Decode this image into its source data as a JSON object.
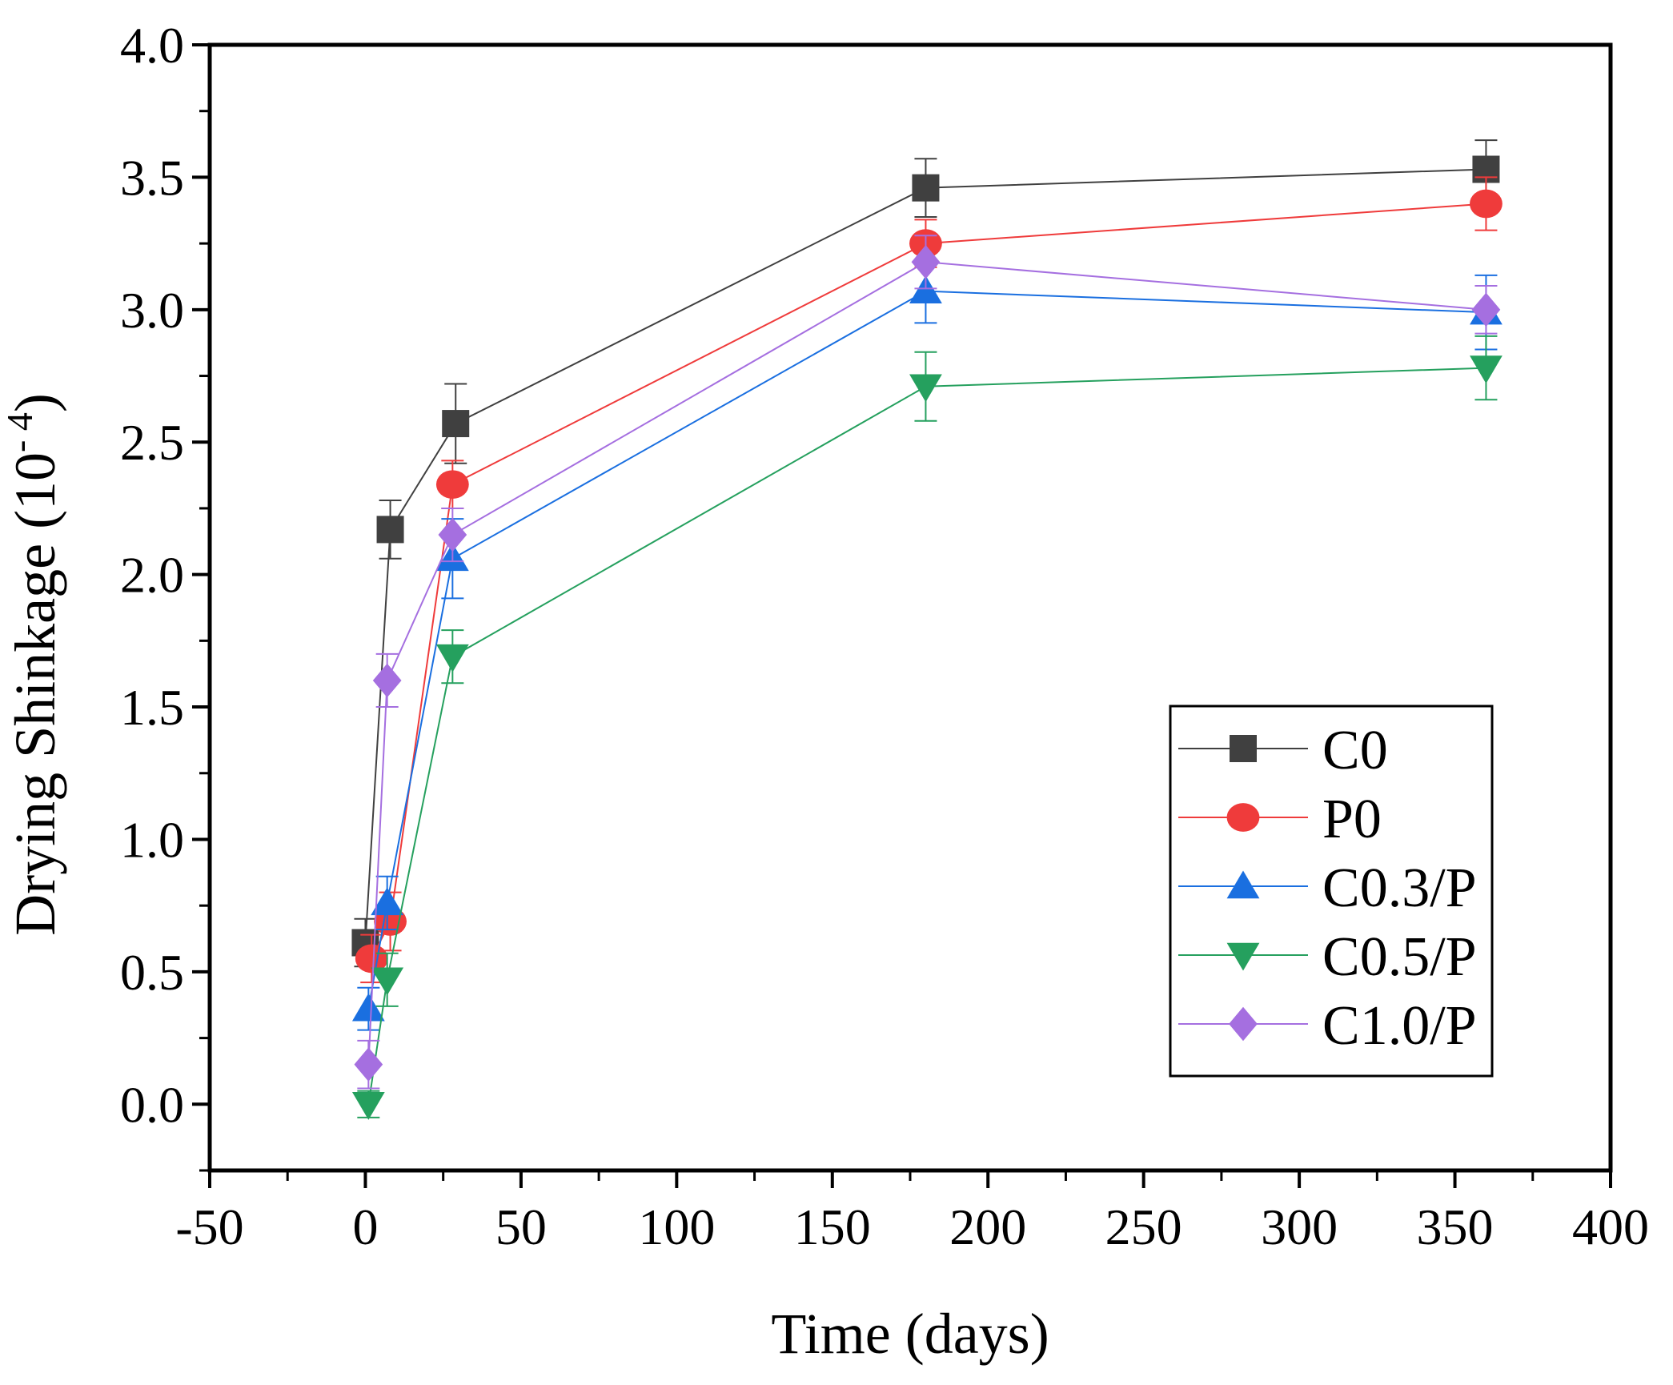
{
  "chart_data": {
    "type": "line",
    "xlabel": "Time (days)",
    "ylabel_main": "Drying Shinkage (10",
    "ylabel_exp": "- 4",
    "ylabel_close": ")",
    "xlim": [
      -50,
      400
    ],
    "ylim": [
      -0.25,
      4.0
    ],
    "xticks": [
      -50,
      0,
      50,
      100,
      150,
      200,
      250,
      300,
      350,
      400
    ],
    "xtick_labels": [
      "-50",
      "0",
      "50",
      "100",
      "150",
      "200",
      "250",
      "300",
      "350",
      "400"
    ],
    "yticks": [
      0.0,
      0.5,
      1.0,
      1.5,
      2.0,
      2.5,
      3.0,
      3.5,
      4.0
    ],
    "ytick_labels": [
      "0.0",
      "0.5",
      "1.0",
      "1.5",
      "2.0",
      "2.5",
      "3.0",
      "3.5",
      "4.0"
    ],
    "legend_position": "bottom-right",
    "series": [
      {
        "name": "C0",
        "color": "#404040",
        "marker": "square",
        "x": [
          0,
          8,
          29,
          180,
          360
        ],
        "y": [
          0.61,
          2.17,
          2.57,
          3.46,
          3.53
        ],
        "err": [
          0.09,
          0.11,
          0.15,
          0.11,
          0.11
        ]
      },
      {
        "name": "P0",
        "color": "#ef3b3b",
        "marker": "circle",
        "x": [
          2,
          8,
          28,
          180,
          360
        ],
        "y": [
          0.55,
          0.69,
          2.34,
          3.25,
          3.4
        ],
        "err": [
          0.09,
          0.11,
          0.09,
          0.09,
          0.1
        ]
      },
      {
        "name": "C0.3/P",
        "color": "#1a6fe0",
        "marker": "triangle-up",
        "x": [
          1,
          7,
          28,
          180,
          360
        ],
        "y": [
          0.36,
          0.76,
          2.06,
          3.07,
          2.99
        ],
        "err": [
          0.08,
          0.1,
          0.15,
          0.12,
          0.14
        ]
      },
      {
        "name": "C0.5/P",
        "color": "#25a05e",
        "marker": "triangle-down",
        "x": [
          1,
          7,
          28,
          180,
          360
        ],
        "y": [
          0.0,
          0.47,
          1.69,
          2.71,
          2.78
        ],
        "err": [
          0.05,
          0.1,
          0.1,
          0.13,
          0.12
        ]
      },
      {
        "name": "C1.0/P",
        "color": "#a56fe0",
        "marker": "diamond",
        "x": [
          1,
          7,
          28,
          180,
          360
        ],
        "y": [
          0.15,
          1.6,
          2.15,
          3.18,
          3.0
        ],
        "err": [
          0.09,
          0.1,
          0.1,
          0.1,
          0.09
        ]
      }
    ]
  }
}
